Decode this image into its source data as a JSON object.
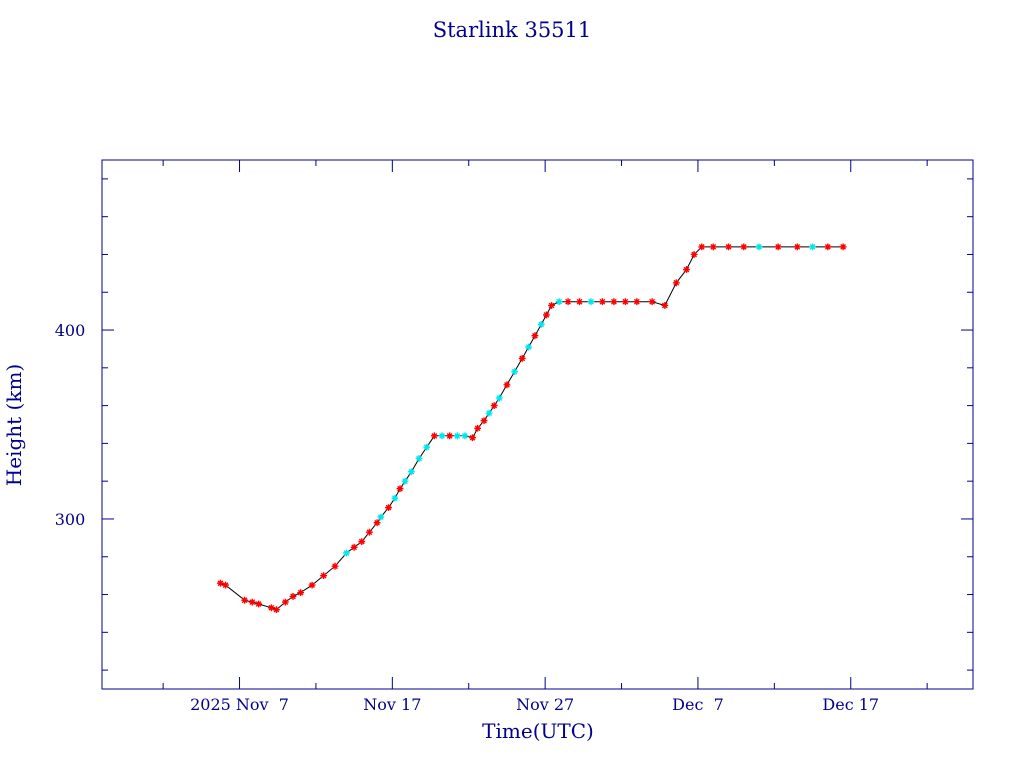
{
  "chart_data": {
    "type": "line",
    "title": "Starlink 35511",
    "xlabel": "Time(UTC)",
    "ylabel": "Height (km)",
    "xlim": [
      "2025-10-29",
      "2025-12-25"
    ],
    "ylim": [
      210,
      490
    ],
    "grid": false,
    "legend": "none",
    "x_ticks": [
      {
        "date": "2025-11-07",
        "label": "2025 Nov  7"
      },
      {
        "date": "2025-11-17",
        "label": "Nov 17"
      },
      {
        "date": "2025-11-27",
        "label": "Nov 27"
      },
      {
        "date": "2025-12-07",
        "label": "Dec  7"
      },
      {
        "date": "2025-12-17",
        "label": "Dec 17"
      }
    ],
    "y_ticks": [
      300,
      400
    ],
    "colors": {
      "frame": "#00008b",
      "text": "#00008b",
      "line": "#000000",
      "marker_red": "#ff0000",
      "marker_cyan": "#00e5ee"
    },
    "series": [
      {
        "marker": "star",
        "points": [
          {
            "x": "2025-11-05 18:00",
            "y": 266,
            "c": "red"
          },
          {
            "x": "2025-11-06 02:00",
            "y": 265,
            "c": "red"
          },
          {
            "x": "2025-11-07 08:00",
            "y": 257,
            "c": "red"
          },
          {
            "x": "2025-11-07 20:00",
            "y": 256,
            "c": "red"
          },
          {
            "x": "2025-11-08 06:00",
            "y": 255,
            "c": "red"
          },
          {
            "x": "2025-11-09 02:00",
            "y": 253,
            "c": "red"
          },
          {
            "x": "2025-11-09 10:00",
            "y": 252,
            "c": "red"
          },
          {
            "x": "2025-11-10 00:00",
            "y": 256,
            "c": "red"
          },
          {
            "x": "2025-11-10 12:00",
            "y": 259,
            "c": "red"
          },
          {
            "x": "2025-11-11 00:00",
            "y": 261,
            "c": "red"
          },
          {
            "x": "2025-11-11 18:00",
            "y": 265,
            "c": "red"
          },
          {
            "x": "2025-11-12 12:00",
            "y": 270,
            "c": "red"
          },
          {
            "x": "2025-11-13 06:00",
            "y": 275,
            "c": "red"
          },
          {
            "x": "2025-11-14 00:00",
            "y": 282,
            "c": "cyan"
          },
          {
            "x": "2025-11-14 12:00",
            "y": 285,
            "c": "red"
          },
          {
            "x": "2025-11-15 00:00",
            "y": 288,
            "c": "red"
          },
          {
            "x": "2025-11-15 12:00",
            "y": 293,
            "c": "red"
          },
          {
            "x": "2025-11-16 00:00",
            "y": 298,
            "c": "red"
          },
          {
            "x": "2025-11-16 06:00",
            "y": 301,
            "c": "cyan"
          },
          {
            "x": "2025-11-16 18:00",
            "y": 306,
            "c": "red"
          },
          {
            "x": "2025-11-17 04:00",
            "y": 311,
            "c": "cyan"
          },
          {
            "x": "2025-11-17 12:00",
            "y": 316,
            "c": "red"
          },
          {
            "x": "2025-11-17 20:00",
            "y": 320,
            "c": "cyan"
          },
          {
            "x": "2025-11-18 06:00",
            "y": 325,
            "c": "cyan"
          },
          {
            "x": "2025-11-18 18:00",
            "y": 332,
            "c": "cyan"
          },
          {
            "x": "2025-11-19 06:00",
            "y": 338,
            "c": "cyan"
          },
          {
            "x": "2025-11-19 18:00",
            "y": 344,
            "c": "red"
          },
          {
            "x": "2025-11-20 06:00",
            "y": 344,
            "c": "cyan"
          },
          {
            "x": "2025-11-20 18:00",
            "y": 344,
            "c": "red"
          },
          {
            "x": "2025-11-21 06:00",
            "y": 344,
            "c": "cyan"
          },
          {
            "x": "2025-11-21 18:00",
            "y": 344,
            "c": "cyan"
          },
          {
            "x": "2025-11-22 06:00",
            "y": 343,
            "c": "red"
          },
          {
            "x": "2025-11-22 14:00",
            "y": 348,
            "c": "red"
          },
          {
            "x": "2025-11-23 00:00",
            "y": 352,
            "c": "red"
          },
          {
            "x": "2025-11-23 08:00",
            "y": 356,
            "c": "cyan"
          },
          {
            "x": "2025-11-23 16:00",
            "y": 360,
            "c": "red"
          },
          {
            "x": "2025-11-24 00:00",
            "y": 364,
            "c": "cyan"
          },
          {
            "x": "2025-11-24 12:00",
            "y": 371,
            "c": "red"
          },
          {
            "x": "2025-11-25 00:00",
            "y": 378,
            "c": "cyan"
          },
          {
            "x": "2025-11-25 12:00",
            "y": 385,
            "c": "red"
          },
          {
            "x": "2025-11-25 22:00",
            "y": 391,
            "c": "cyan"
          },
          {
            "x": "2025-11-26 08:00",
            "y": 397,
            "c": "red"
          },
          {
            "x": "2025-11-26 18:00",
            "y": 403,
            "c": "cyan"
          },
          {
            "x": "2025-11-27 02:00",
            "y": 408,
            "c": "red"
          },
          {
            "x": "2025-11-27 10:00",
            "y": 413,
            "c": "red"
          },
          {
            "x": "2025-11-27 22:00",
            "y": 415,
            "c": "cyan"
          },
          {
            "x": "2025-11-28 12:00",
            "y": 415,
            "c": "red"
          },
          {
            "x": "2025-11-29 06:00",
            "y": 415,
            "c": "red"
          },
          {
            "x": "2025-11-30 00:00",
            "y": 415,
            "c": "cyan"
          },
          {
            "x": "2025-11-30 18:00",
            "y": 415,
            "c": "red"
          },
          {
            "x": "2025-12-01 12:00",
            "y": 415,
            "c": "red"
          },
          {
            "x": "2025-12-02 06:00",
            "y": 415,
            "c": "red"
          },
          {
            "x": "2025-12-03 00:00",
            "y": 415,
            "c": "red"
          },
          {
            "x": "2025-12-04 00:00",
            "y": 415,
            "c": "red"
          },
          {
            "x": "2025-12-04 20:00",
            "y": 413,
            "c": "red"
          },
          {
            "x": "2025-12-05 14:00",
            "y": 425,
            "c": "red"
          },
          {
            "x": "2025-12-06 06:00",
            "y": 432,
            "c": "red"
          },
          {
            "x": "2025-12-06 18:00",
            "y": 440,
            "c": "red"
          },
          {
            "x": "2025-12-07 06:00",
            "y": 444,
            "c": "red"
          },
          {
            "x": "2025-12-08 00:00",
            "y": 444,
            "c": "red"
          },
          {
            "x": "2025-12-09 00:00",
            "y": 444,
            "c": "red"
          },
          {
            "x": "2025-12-10 00:00",
            "y": 444,
            "c": "red"
          },
          {
            "x": "2025-12-11 00:00",
            "y": 444,
            "c": "cyan"
          },
          {
            "x": "2025-12-12 06:00",
            "y": 444,
            "c": "red"
          },
          {
            "x": "2025-12-13 12:00",
            "y": 444,
            "c": "red"
          },
          {
            "x": "2025-12-14 12:00",
            "y": 444,
            "c": "cyan"
          },
          {
            "x": "2025-12-15 12:00",
            "y": 444,
            "c": "red"
          },
          {
            "x": "2025-12-16 12:00",
            "y": 444,
            "c": "red"
          }
        ]
      }
    ]
  }
}
